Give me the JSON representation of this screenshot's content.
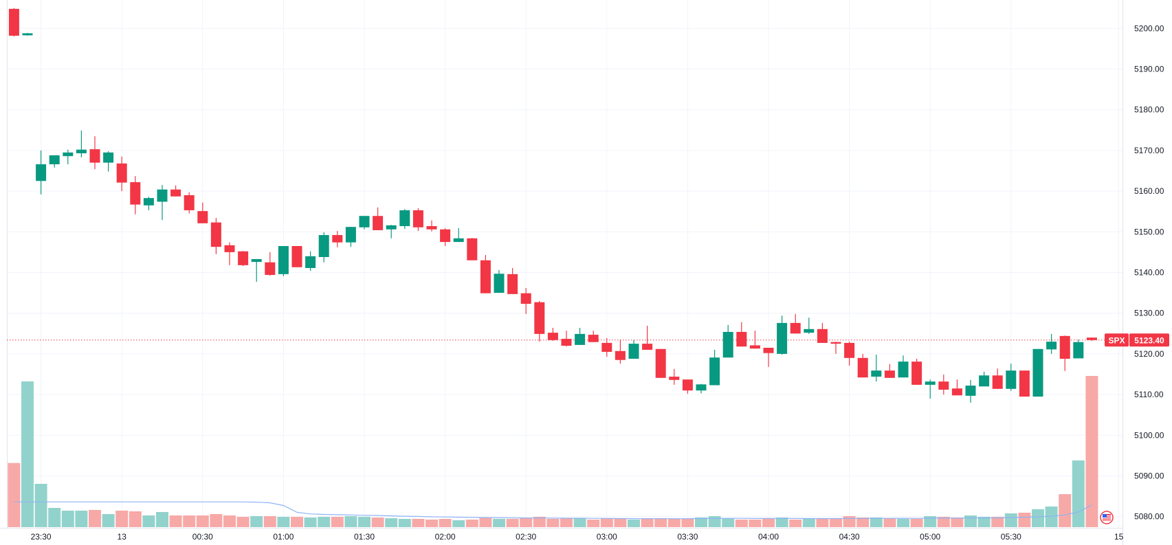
{
  "chart_data": {
    "type": "candlestick",
    "symbol_label": "SPX",
    "last_price_label": "5123.40",
    "last_price": 5123.4,
    "colors": {
      "up": "#089981",
      "down": "#f23645",
      "volume_up": "#92d2cc",
      "volume_down": "#f7a9a7",
      "volume_ma": "#8fb4f5",
      "grid": "#f0f3fa"
    },
    "y_axis": {
      "range": [
        5075,
        5207
      ],
      "ticks": [
        "5200.00",
        "5190.00",
        "5180.00",
        "5170.00",
        "5160.00",
        "5150.00",
        "5140.00",
        "5130.00",
        "5120.00",
        "5110.00",
        "5100.00",
        "5090.00",
        "5080.00"
      ],
      "position": "right"
    },
    "x_axis": {
      "ticks": [
        {
          "label": "23:30",
          "time": "23:30"
        },
        {
          "label": "13",
          "time": "00:00"
        },
        {
          "label": "00:30",
          "time": "00:30"
        },
        {
          "label": "01:00",
          "time": "01:00"
        },
        {
          "label": "01:30",
          "time": "01:30"
        },
        {
          "label": "02:00",
          "time": "02:00"
        },
        {
          "label": "02:30",
          "time": "02:30"
        },
        {
          "label": "03:00",
          "time": "03:00"
        },
        {
          "label": "03:30",
          "time": "03:30"
        },
        {
          "label": "04:00",
          "time": "04:00"
        },
        {
          "label": "04:30",
          "time": "04:30"
        },
        {
          "label": "05:00",
          "time": "05:00"
        },
        {
          "label": "05:30",
          "time": "05:30"
        },
        {
          "label": "15",
          "time": "06:10"
        }
      ]
    },
    "grid": true,
    "interval": "5m",
    "start_time": "23:20",
    "candles": [
      [
        5204.8,
        5205.0,
        5198.0,
        5198.2
      ],
      [
        5198.3,
        5198.9,
        5198.2,
        5198.8
      ],
      [
        5162.5,
        5170.0,
        5159.2,
        5166.6
      ],
      [
        5166.6,
        5168.8,
        5165.8,
        5168.8
      ],
      [
        5168.6,
        5170.2,
        5166.6,
        5169.5
      ],
      [
        5169.3,
        5174.9,
        5168.3,
        5170.2
      ],
      [
        5170.3,
        5173.5,
        5165.4,
        5167.0
      ],
      [
        5167.0,
        5169.8,
        5164.8,
        5169.5
      ],
      [
        5166.8,
        5168.5,
        5160.0,
        5162.1
      ],
      [
        5162.2,
        5163.7,
        5154.3,
        5156.7
      ],
      [
        5156.5,
        5158.6,
        5155.3,
        5158.3
      ],
      [
        5157.4,
        5161.5,
        5152.9,
        5160.4
      ],
      [
        5160.4,
        5161.4,
        5158.7,
        5158.7
      ],
      [
        5159.0,
        5159.7,
        5154.5,
        5155.3
      ],
      [
        5155.1,
        5157.2,
        5152.1,
        5152.1
      ],
      [
        5152.3,
        5153.4,
        5144.5,
        5146.3
      ],
      [
        5146.7,
        5147.4,
        5141.8,
        5145.0
      ],
      [
        5145.2,
        5145.3,
        5141.6,
        5141.8
      ],
      [
        5142.6,
        5143.3,
        5137.7,
        5143.3
      ],
      [
        5142.5,
        5145.0,
        5139.2,
        5139.4
      ],
      [
        5139.6,
        5146.5,
        5139.1,
        5146.5
      ],
      [
        5146.5,
        5146.5,
        5141.3,
        5141.3
      ],
      [
        5141.1,
        5145.2,
        5140.4,
        5144.0
      ],
      [
        5143.8,
        5149.9,
        5142.5,
        5149.2
      ],
      [
        5149.2,
        5150.2,
        5146.2,
        5147.4
      ],
      [
        5147.4,
        5151.2,
        5146.3,
        5151.2
      ],
      [
        5151.1,
        5153.9,
        5150.6,
        5153.9
      ],
      [
        5153.9,
        5156.0,
        5150.4,
        5150.4
      ],
      [
        5150.6,
        5151.7,
        5148.4,
        5151.6
      ],
      [
        5151.4,
        5155.6,
        5150.7,
        5155.3
      ],
      [
        5155.3,
        5155.8,
        5150.2,
        5151.1
      ],
      [
        5151.4,
        5152.8,
        5150.1,
        5150.6
      ],
      [
        5150.6,
        5150.9,
        5146.5,
        5147.5
      ],
      [
        5147.5,
        5150.9,
        5147.5,
        5148.4
      ],
      [
        5148.4,
        5148.5,
        5143.0,
        5143.0
      ],
      [
        5143.0,
        5144.3,
        5134.9,
        5134.9
      ],
      [
        5135.0,
        5140.6,
        5135.0,
        5139.7
      ],
      [
        5139.6,
        5141.1,
        5134.7,
        5134.7
      ],
      [
        5134.9,
        5136.2,
        5129.8,
        5132.3
      ],
      [
        5132.7,
        5133.0,
        5123.0,
        5124.9
      ],
      [
        5125.2,
        5126.4,
        5123.2,
        5123.4
      ],
      [
        5123.7,
        5125.7,
        5121.8,
        5122.0
      ],
      [
        5122.2,
        5126.4,
        5122.2,
        5124.9
      ],
      [
        5124.7,
        5125.7,
        5122.9,
        5122.9
      ],
      [
        5122.7,
        5123.9,
        5119.3,
        5120.5
      ],
      [
        5120.7,
        5123.5,
        5117.6,
        5118.5
      ],
      [
        5118.8,
        5123.4,
        5118.8,
        5122.5
      ],
      [
        5122.5,
        5126.9,
        5121.0,
        5121.0
      ],
      [
        5121.2,
        5121.2,
        5114.1,
        5114.1
      ],
      [
        5114.4,
        5116.3,
        5112.4,
        5113.6
      ],
      [
        5113.7,
        5113.7,
        5110.2,
        5111.0
      ],
      [
        5111.0,
        5112.6,
        5110.3,
        5112.5
      ],
      [
        5112.3,
        5121.0,
        5112.3,
        5119.1
      ],
      [
        5119.1,
        5127.1,
        5119.1,
        5125.4
      ],
      [
        5125.4,
        5127.8,
        5121.8,
        5121.8
      ],
      [
        5122.1,
        5125.7,
        5121.3,
        5121.3
      ],
      [
        5121.5,
        5121.5,
        5116.8,
        5120.2
      ],
      [
        5120.0,
        5129.4,
        5119.8,
        5127.6
      ],
      [
        5127.6,
        5129.8,
        5125.0,
        5125.0
      ],
      [
        5125.2,
        5128.9,
        5124.9,
        5126.1
      ],
      [
        5126.1,
        5127.6,
        5122.7,
        5122.7
      ],
      [
        5122.9,
        5123.0,
        5120.0,
        5122.5
      ],
      [
        5122.7,
        5123.0,
        5117.1,
        5119.0
      ],
      [
        5119.0,
        5120.0,
        5114.2,
        5114.2
      ],
      [
        5114.4,
        5119.8,
        5113.2,
        5115.9
      ],
      [
        5115.9,
        5117.5,
        5114.1,
        5114.1
      ],
      [
        5114.2,
        5119.6,
        5114.2,
        5118.1
      ],
      [
        5118.1,
        5118.8,
        5112.4,
        5112.4
      ],
      [
        5112.4,
        5113.7,
        5109.0,
        5113.2
      ],
      [
        5113.2,
        5114.9,
        5110.0,
        5111.2
      ],
      [
        5111.5,
        5113.7,
        5109.8,
        5109.8
      ],
      [
        5109.7,
        5113.6,
        5108.0,
        5112.2
      ],
      [
        5112.0,
        5115.6,
        5112.0,
        5114.7
      ],
      [
        5114.7,
        5116.4,
        5111.4,
        5111.4
      ],
      [
        5111.4,
        5117.6,
        5110.9,
        5115.9
      ],
      [
        5115.9,
        5115.9,
        5109.5,
        5109.5
      ],
      [
        5109.5,
        5121.2,
        5109.5,
        5121.2
      ],
      [
        5121.1,
        5124.9,
        5120.0,
        5123.0
      ],
      [
        5124.4,
        5124.5,
        5115.8,
        5118.8
      ],
      [
        5118.9,
        5123.5,
        5118.9,
        5122.9
      ],
      [
        5124.0,
        5124.0,
        5123.2,
        5123.4
      ]
    ],
    "candle_fields": [
      "open",
      "high",
      "low",
      "close"
    ],
    "volume_relative": [
      280,
      636,
      189,
      84,
      72,
      72,
      75,
      57,
      72,
      69,
      51,
      66,
      51,
      51,
      51,
      57,
      51,
      45,
      48,
      48,
      45,
      45,
      42,
      45,
      45,
      48,
      45,
      42,
      39,
      36,
      36,
      33,
      36,
      30,
      33,
      42,
      36,
      36,
      39,
      45,
      36,
      39,
      39,
      33,
      39,
      39,
      33,
      39,
      39,
      36,
      36,
      42,
      48,
      39,
      33,
      33,
      36,
      42,
      33,
      36,
      36,
      36,
      48,
      42,
      42,
      39,
      36,
      36,
      48,
      45,
      42,
      51,
      45,
      45,
      60,
      63,
      78,
      90,
      144,
      291,
      660
    ],
    "icons": {
      "country_flag": "us-flag-icon"
    }
  }
}
